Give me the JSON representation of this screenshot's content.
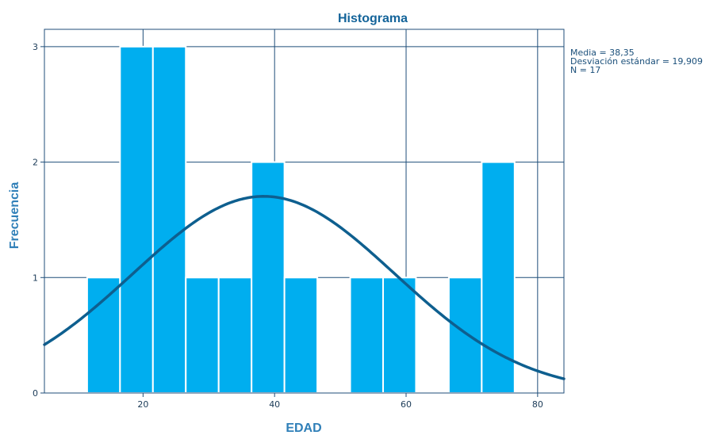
{
  "chart_data": {
    "type": "bar",
    "title": "Histograma",
    "xlabel": "EDAD",
    "ylabel": "Frecuencia",
    "xlim": [
      5,
      84
    ],
    "ylim": [
      0,
      3.15
    ],
    "xticks": [
      20,
      40,
      60,
      80
    ],
    "yticks": [
      0,
      1,
      2,
      3
    ],
    "bin_width": 5,
    "bins": [
      {
        "start": 11.5,
        "end": 16.5,
        "count": 1
      },
      {
        "start": 16.5,
        "end": 21.5,
        "count": 3
      },
      {
        "start": 21.5,
        "end": 26.5,
        "count": 3
      },
      {
        "start": 26.5,
        "end": 31.5,
        "count": 1
      },
      {
        "start": 31.5,
        "end": 36.5,
        "count": 1
      },
      {
        "start": 36.5,
        "end": 41.5,
        "count": 2
      },
      {
        "start": 41.5,
        "end": 46.5,
        "count": 1
      },
      {
        "start": 46.5,
        "end": 51.5,
        "count": 0
      },
      {
        "start": 51.5,
        "end": 56.5,
        "count": 1
      },
      {
        "start": 56.5,
        "end": 61.5,
        "count": 1
      },
      {
        "start": 61.5,
        "end": 66.5,
        "count": 0
      },
      {
        "start": 66.5,
        "end": 71.5,
        "count": 1
      },
      {
        "start": 71.5,
        "end": 76.5,
        "count": 2
      }
    ],
    "normal_curve": {
      "mean": 38.35,
      "sd": 19.909,
      "n": 17
    },
    "grid": true,
    "stats_lines": [
      "Media = 38,35",
      "Desviación estándar = 19,909",
      "N = 17"
    ],
    "colors": {
      "bar_fill": "#00aeef",
      "bar_edge": "#ffffff",
      "curve": "#0e5f8f",
      "frame": "#1f4e79",
      "grid": "#1f4e79",
      "title": "#14649a",
      "axis_label": "#2f7fb8",
      "tick_text": "#1a3a57",
      "stats_text": "#1a4f7a"
    }
  }
}
